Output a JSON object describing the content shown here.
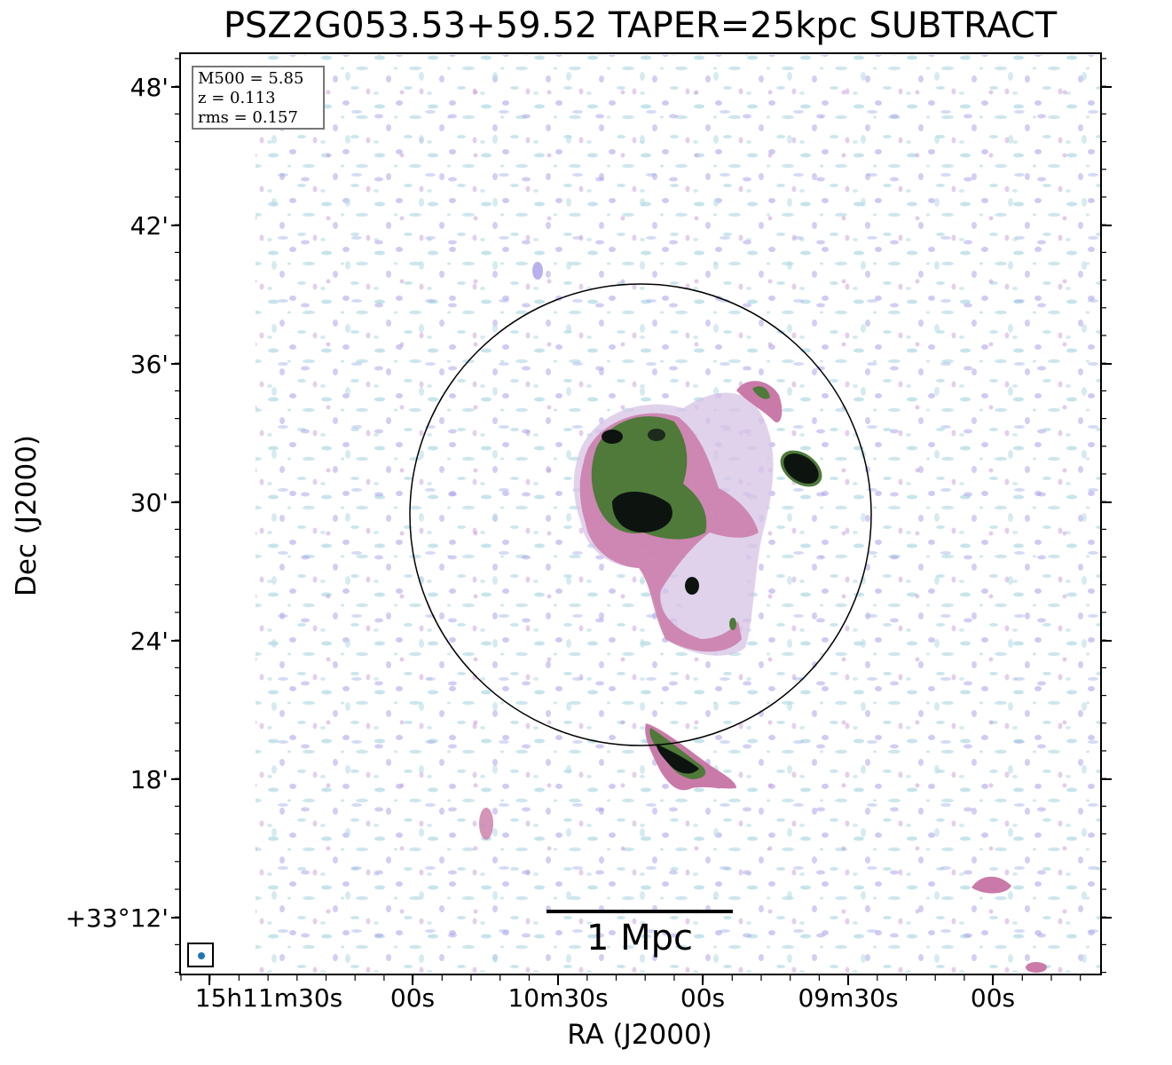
{
  "title": "PSZ2G053.53+59.52 TAPER=25kpc SUBTRACT",
  "axes": {
    "xlabel": "RA (J2000)",
    "ylabel": "Dec (J2000)",
    "x_ticks": [
      "15h11m30s",
      "00s",
      "10m30s",
      "00s",
      "09m30s",
      "00s"
    ],
    "y_ticks": [
      "48'",
      "42'",
      "36'",
      "30'",
      "24'",
      "18'",
      "+33°12'"
    ]
  },
  "info_box": {
    "line1": "M500 = 5.85",
    "line2": "z = 0.113",
    "line3": "rms = 0.157"
  },
  "scale_bar": {
    "label": "1 Mpc"
  },
  "colors": {
    "noise_light": "#b9dde6",
    "noise_purple": "#a89ee6",
    "pink": "#c97aa8",
    "green": "#4f7a3a",
    "dark": "#0d1410",
    "beam": "#1f77b4"
  }
}
